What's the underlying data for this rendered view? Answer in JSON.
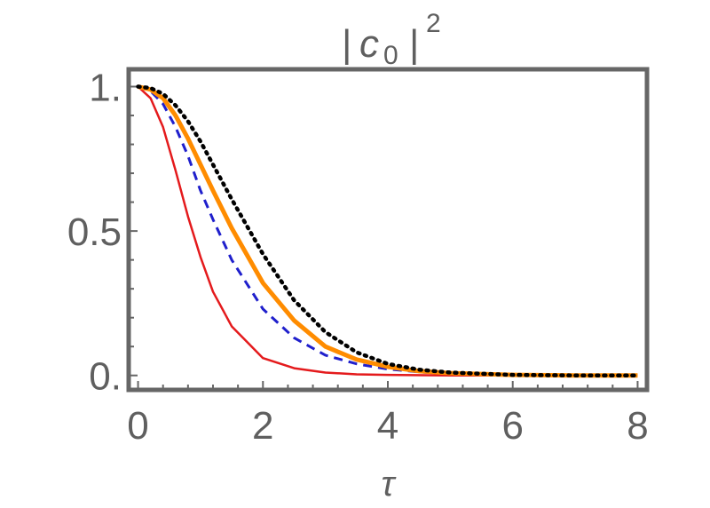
{
  "chart_data": {
    "type": "line",
    "title": "| c0 | 2",
    "title_parts": {
      "open_bar": "|",
      "symbol": "c",
      "subscript": "0",
      "close_bar": "|",
      "superscript": "2"
    },
    "xlabel": "τ",
    "ylabel": "",
    "xlim": [
      -0.15,
      8.15
    ],
    "ylim": [
      -0.05,
      1.06
    ],
    "x_ticks": [
      {
        "value": 0,
        "label": "0"
      },
      {
        "value": 2,
        "label": "2"
      },
      {
        "value": 4,
        "label": "4"
      },
      {
        "value": 6,
        "label": "6"
      },
      {
        "value": 8,
        "label": "8"
      }
    ],
    "y_ticks": [
      {
        "value": 0,
        "label": "0."
      },
      {
        "value": 0.5,
        "label": "0.5"
      },
      {
        "value": 1,
        "label": "1."
      }
    ],
    "grid": false,
    "legend": "none",
    "series": [
      {
        "color": "#e41a1c",
        "style": "solid",
        "width": 2.5,
        "x": [
          0,
          0.2,
          0.4,
          0.6,
          0.8,
          1.0,
          1.2,
          1.5,
          2.0,
          2.5,
          3.0,
          3.5,
          4.0,
          5.0,
          6.0,
          7.0,
          8.0
        ],
        "y": [
          1.0,
          0.96,
          0.86,
          0.71,
          0.55,
          0.41,
          0.29,
          0.17,
          0.06,
          0.025,
          0.01,
          0.004,
          0.002,
          0.0,
          0.0,
          0.0,
          0.0
        ]
      },
      {
        "color": "#1f1fcc",
        "style": "dashed",
        "width": 3,
        "x": [
          0,
          0.2,
          0.4,
          0.6,
          0.8,
          1.0,
          1.2,
          1.5,
          2.0,
          2.5,
          3.0,
          3.5,
          4.0,
          4.5,
          5.0,
          6.0,
          7.0,
          8.0
        ],
        "y": [
          1.0,
          0.985,
          0.94,
          0.86,
          0.76,
          0.64,
          0.54,
          0.4,
          0.23,
          0.13,
          0.07,
          0.04,
          0.022,
          0.012,
          0.006,
          0.001,
          0.0,
          0.0
        ]
      },
      {
        "color": "#ff8c00",
        "style": "solid",
        "width": 5,
        "x": [
          0,
          0.2,
          0.4,
          0.6,
          0.8,
          1.0,
          1.2,
          1.5,
          2.0,
          2.5,
          3.0,
          3.5,
          4.0,
          4.5,
          5.0,
          6.0,
          7.0,
          8.0
        ],
        "y": [
          1.0,
          0.99,
          0.96,
          0.9,
          0.82,
          0.73,
          0.64,
          0.51,
          0.32,
          0.19,
          0.1,
          0.055,
          0.03,
          0.015,
          0.008,
          0.002,
          0.0,
          0.0
        ]
      },
      {
        "color": "#000000",
        "style": "dotted",
        "width": 4.5,
        "x": [
          0,
          0.2,
          0.4,
          0.6,
          0.8,
          1.0,
          1.2,
          1.5,
          2.0,
          2.5,
          3.0,
          3.5,
          4.0,
          4.5,
          5.0,
          6.0,
          7.0,
          8.0
        ],
        "y": [
          1.0,
          0.995,
          0.975,
          0.935,
          0.88,
          0.81,
          0.73,
          0.61,
          0.42,
          0.26,
          0.15,
          0.08,
          0.04,
          0.02,
          0.01,
          0.002,
          0.0,
          0.0
        ]
      }
    ]
  }
}
